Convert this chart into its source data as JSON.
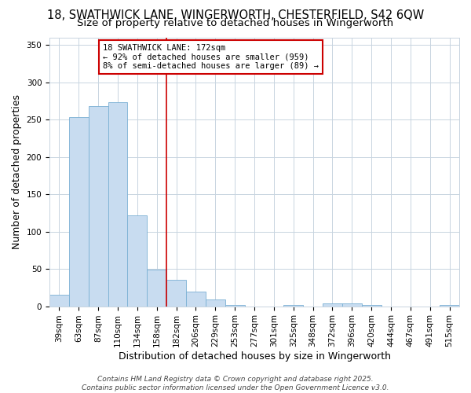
{
  "title_line1": "18, SWATHWICK LANE, WINGERWORTH, CHESTERFIELD, S42 6QW",
  "title_line2": "Size of property relative to detached houses in Wingerworth",
  "xlabel": "Distribution of detached houses by size in Wingerworth",
  "ylabel": "Number of detached properties",
  "categories": [
    "39sqm",
    "63sqm",
    "87sqm",
    "110sqm",
    "134sqm",
    "158sqm",
    "182sqm",
    "206sqm",
    "229sqm",
    "253sqm",
    "277sqm",
    "301sqm",
    "325sqm",
    "348sqm",
    "372sqm",
    "396sqm",
    "420sqm",
    "444sqm",
    "467sqm",
    "491sqm",
    "515sqm"
  ],
  "values": [
    15,
    253,
    268,
    273,
    122,
    49,
    35,
    20,
    9,
    2,
    0,
    0,
    2,
    0,
    4,
    4,
    2,
    0,
    0,
    0,
    2
  ],
  "bar_color": "#c8dcf0",
  "bar_edge_color": "#7ab0d4",
  "grid_color": "#c8d4e0",
  "bg_color": "#ffffff",
  "vline_x": 5.5,
  "vline_color": "#cc0000",
  "annotation_text": "18 SWATHWICK LANE: 172sqm\n← 92% of detached houses are smaller (959)\n8% of semi-detached houses are larger (89) →",
  "annotation_box_color": "white",
  "annotation_box_edge": "#cc0000",
  "ylim": [
    0,
    360
  ],
  "yticks": [
    0,
    50,
    100,
    150,
    200,
    250,
    300,
    350
  ],
  "footer_line1": "Contains HM Land Registry data © Crown copyright and database right 2025.",
  "footer_line2": "Contains public sector information licensed under the Open Government Licence v3.0.",
  "title_fontsize": 10.5,
  "subtitle_fontsize": 9.5,
  "axis_label_fontsize": 9,
  "tick_fontsize": 7.5,
  "annotation_fontsize": 7.5,
  "footer_fontsize": 6.5
}
